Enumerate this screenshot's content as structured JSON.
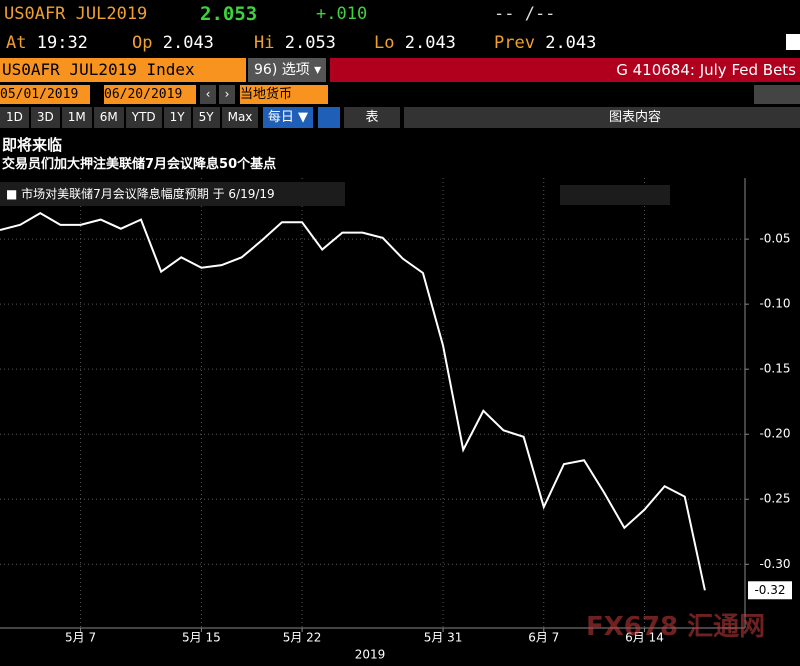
{
  "terminal": {
    "ticker": "US0AFR JUL2019",
    "last": "2.053",
    "change": "+.010",
    "bidask": "-- /--",
    "at_label": "At",
    "at": "19:32",
    "op_label": "Op",
    "op": "2.043",
    "hi_label": "Hi",
    "hi": "2.053",
    "lo_label": "Lo",
    "lo": "2.043",
    "prev_label": "Prev",
    "prev": "2.043",
    "security": "US0AFR JUL2019 Index",
    "options": "96) 选项 ▾",
    "page_title": "G 410684: July Fed Bets",
    "start_date": "05/01/2019",
    "end_date": "06/20/2019",
    "currency": "当地货币",
    "periods": [
      "1D",
      "3D",
      "1M",
      "6M",
      "YTD",
      "1Y",
      "5Y",
      "Max"
    ],
    "frequency": "每日 ▼",
    "table_button": "表",
    "chart_contents": "图表内容",
    "watermark": "FX678 汇通网"
  },
  "chart_data": {
    "type": "line",
    "title": "即将来临",
    "subtitle": "交易员们加大押注美联储7月会议降息50个基点",
    "x_year_label": "2019",
    "categories": [
      null,
      null,
      null,
      null,
      "5月 7",
      null,
      null,
      null,
      null,
      null,
      "5月 15",
      null,
      null,
      null,
      null,
      "5月 22",
      null,
      null,
      null,
      null,
      null,
      null,
      "5月 31",
      null,
      null,
      null,
      null,
      "6月 7",
      null,
      null,
      null,
      null,
      "6月 14",
      null,
      null,
      null
    ],
    "series": [
      {
        "name": "市场对美联储7月会议降息幅度预期 于 6/19/19",
        "color": "#ffffff",
        "values": [
          -0.043,
          -0.039,
          -0.03,
          -0.039,
          -0.039,
          -0.035,
          -0.042,
          -0.035,
          -0.075,
          -0.064,
          -0.072,
          -0.07,
          -0.064,
          -0.051,
          -0.037,
          -0.037,
          -0.058,
          -0.045,
          -0.045,
          -0.049,
          -0.065,
          -0.076,
          -0.132,
          -0.212,
          -0.182,
          -0.197,
          -0.202,
          -0.256,
          -0.223,
          -0.22,
          -0.245,
          -0.272,
          -0.258,
          -0.24,
          -0.248,
          -0.32
        ]
      }
    ],
    "ylim": [
      -0.349,
      -0.003
    ],
    "yticks": [
      -0.05,
      {
        "value": -0.1,
        "label": "-0.10"
      },
      -0.15,
      {
        "value": -0.2,
        "label": "-0.20"
      },
      -0.25,
      {
        "value": -0.3,
        "label": "-0.30"
      }
    ],
    "grid": true
  }
}
